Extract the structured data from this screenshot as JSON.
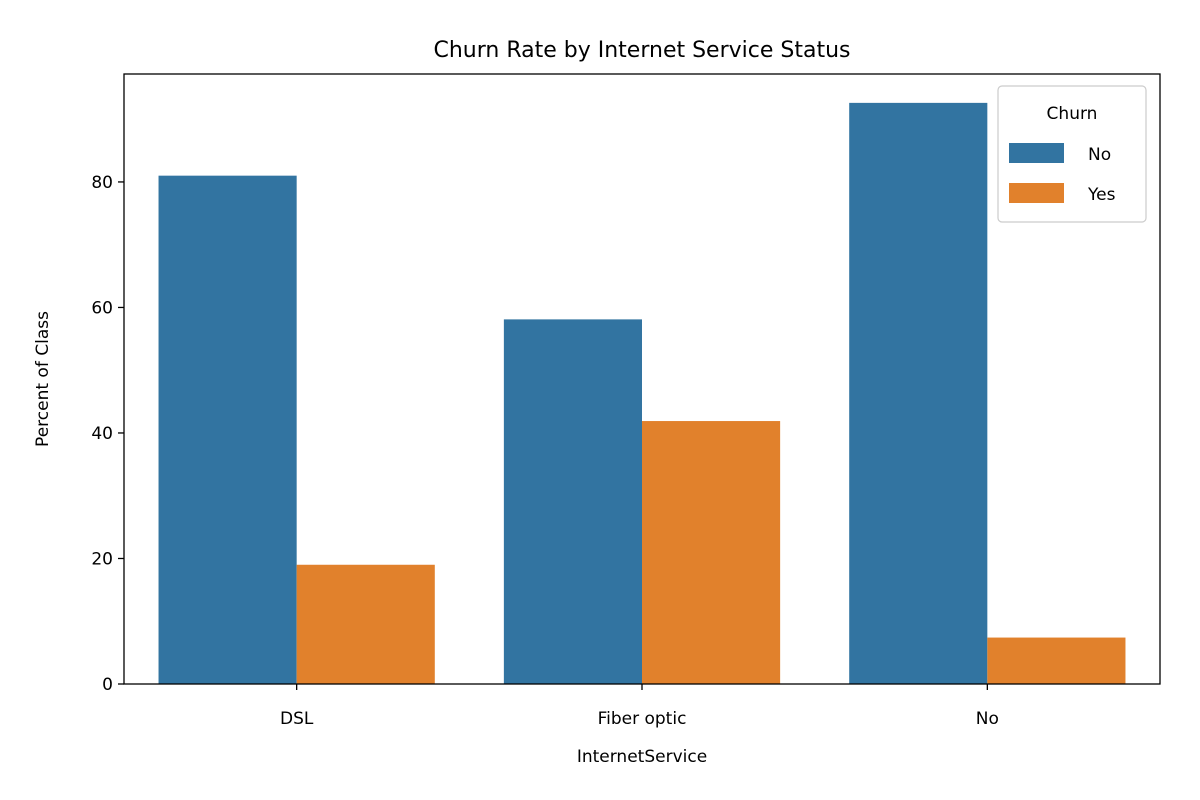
{
  "chart_data": {
    "type": "bar",
    "title": "Churn Rate by Internet Service Status",
    "xlabel": "InternetService",
    "ylabel": "Percent of Class",
    "categories": [
      "DSL",
      "Fiber optic",
      "No"
    ],
    "series": [
      {
        "name": "No",
        "values": [
          81.0,
          58.1,
          92.6
        ],
        "color": "#3274a1"
      },
      {
        "name": "Yes",
        "values": [
          19.0,
          41.9,
          7.4
        ],
        "color": "#e1812c"
      }
    ],
    "ylim": [
      0,
      97.2
    ],
    "yticks": [
      0,
      20,
      40,
      60,
      80
    ],
    "legend": {
      "title": "Churn",
      "placement": "top-right"
    },
    "grid": false
  }
}
